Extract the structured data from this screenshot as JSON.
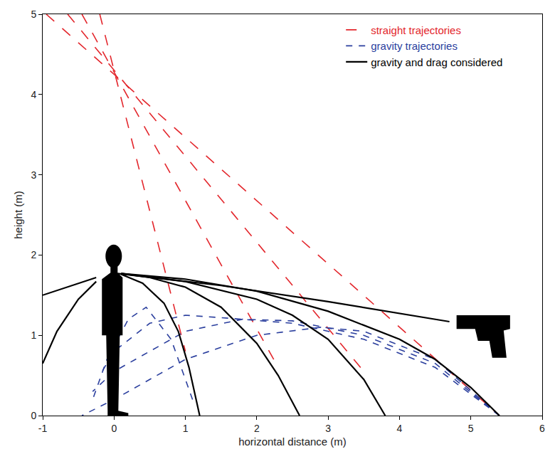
{
  "chart_data": {
    "type": "line",
    "x_label": "horizontal distance (m)",
    "y_label": "height (m)",
    "xlim": [
      -1,
      6
    ],
    "xticks": [
      -1,
      0,
      1,
      2,
      3,
      4,
      5,
      6
    ],
    "ylim": [
      0,
      5
    ],
    "yticks": [
      0,
      1,
      2,
      3,
      4,
      5
    ],
    "grid": false,
    "legend": "upper right",
    "series": [
      {
        "name": "straight trajectories",
        "color": "#e3262c",
        "line_style": "long-dash",
        "x": [
          -0.2,
          1.0,
          null,
          -0.45,
          2.3,
          null,
          -0.65,
          3.5,
          null,
          -0.95,
          5.4
        ],
        "y": [
          5.0,
          0.8,
          null,
          5.0,
          0.6,
          null,
          5.0,
          0.55,
          null,
          5.0,
          0.0
        ]
      },
      {
        "name": "gravity trajectories",
        "color": "#2b3f9e",
        "line_style": "short-dash",
        "x": [
          5.4,
          4.5,
          3.5,
          2.9,
          2.0,
          1.0,
          0.0,
          -0.45,
          null,
          5.4,
          4.5,
          3.5,
          2.5,
          1.8,
          1.0,
          0.0,
          -0.3,
          null,
          5.4,
          4.5,
          3.5,
          2.5,
          1.5,
          1.0,
          0.5,
          0.0,
          -0.2,
          null,
          1.1,
          0.8,
          0.45,
          0.2,
          -0.1,
          -0.3
        ],
        "y": [
          0.0,
          0.7,
          1.05,
          1.1,
          1.0,
          0.7,
          0.2,
          0.0,
          null,
          0.0,
          0.65,
          1.0,
          1.18,
          1.2,
          1.05,
          0.55,
          0.3,
          null,
          0.0,
          0.6,
          0.95,
          1.15,
          1.22,
          1.25,
          1.15,
          0.8,
          0.5,
          null,
          0.2,
          0.95,
          1.35,
          1.2,
          0.7,
          0.2
        ]
      },
      {
        "name": "gravity and drag considered",
        "color": "#000000",
        "line_style": "solid",
        "x": [
          4.7,
          3.0,
          1.5,
          0.05,
          null,
          5.4,
          5.0,
          4.5,
          4.0,
          3.0,
          2.0,
          1.0,
          0.1,
          null,
          3.8,
          3.5,
          3.0,
          2.5,
          2.0,
          1.0,
          0.1,
          null,
          2.6,
          2.3,
          2.0,
          1.5,
          1.0,
          0.5,
          0.1,
          null,
          1.2,
          1.05,
          0.9,
          0.7,
          0.4,
          0.1,
          null,
          -1.0,
          -0.6,
          -0.25,
          null,
          -1.0,
          -0.8,
          -0.5,
          -0.25
        ],
        "y": [
          1.17,
          1.42,
          1.62,
          1.77,
          null,
          0.0,
          0.35,
          0.7,
          0.95,
          1.3,
          1.55,
          1.7,
          1.77,
          null,
          0.0,
          0.45,
          0.95,
          1.25,
          1.45,
          1.67,
          1.77,
          null,
          0.0,
          0.5,
          0.9,
          1.35,
          1.6,
          1.72,
          1.77,
          null,
          0.0,
          0.6,
          1.05,
          1.4,
          1.65,
          1.76,
          null,
          1.5,
          1.62,
          1.72,
          null,
          0.65,
          1.05,
          1.45,
          1.67
        ]
      }
    ]
  }
}
